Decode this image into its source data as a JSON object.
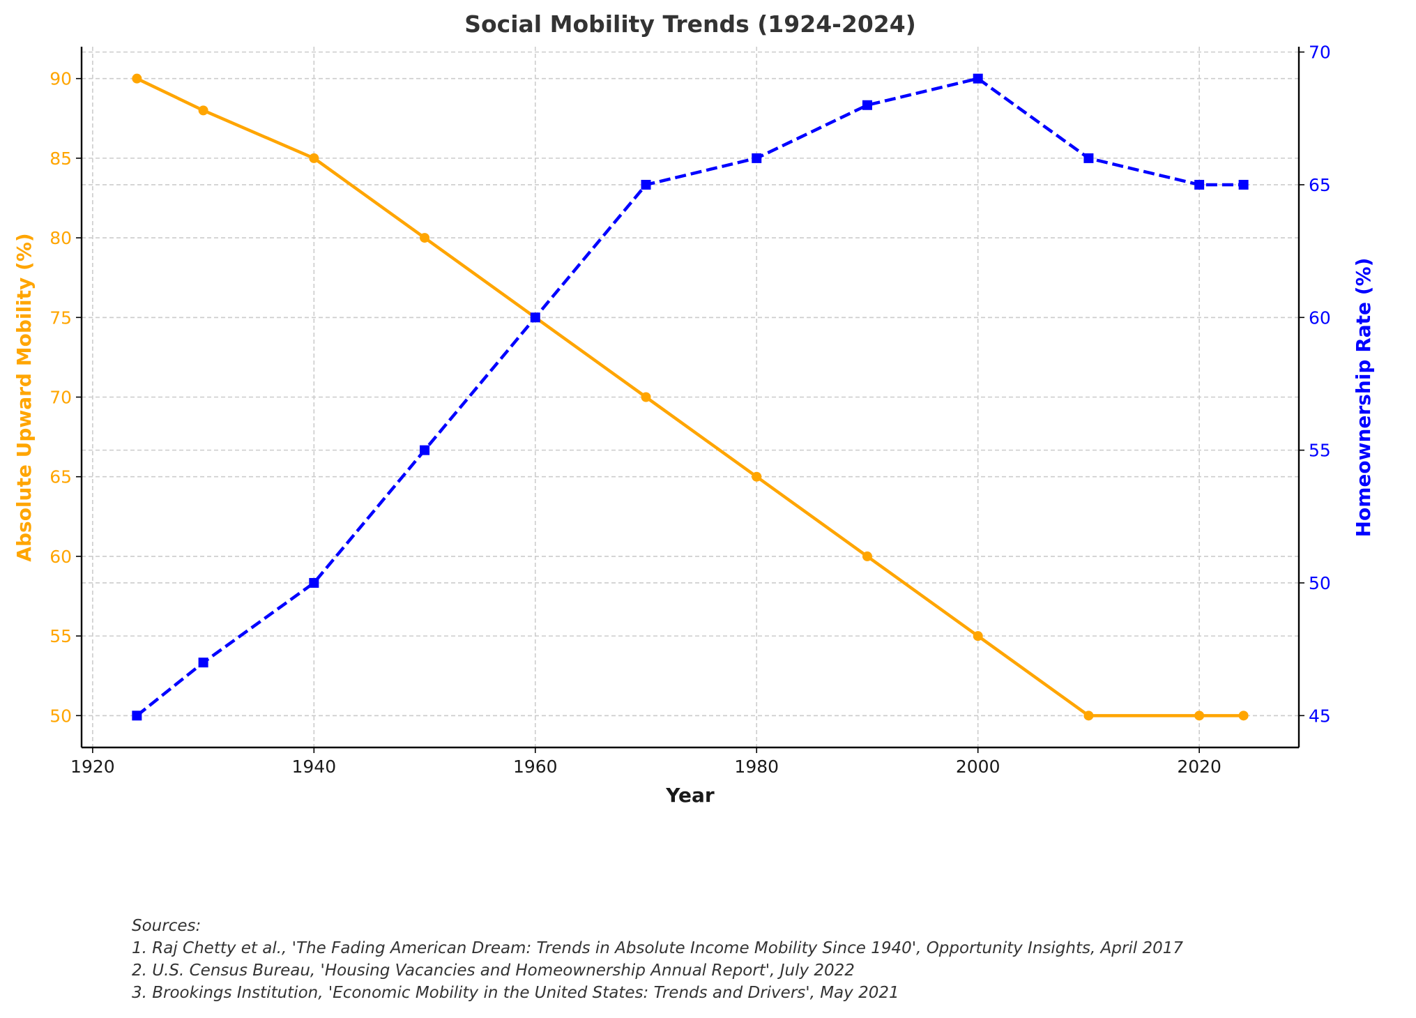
{
  "chart_data": {
    "type": "line",
    "title": "Social Mobility Trends (1924-2024)",
    "xlabel": "Year",
    "ylabel_left": "Absolute Upward Mobility (%)",
    "ylabel_right": "Homeownership Rate (%)",
    "x": [
      1924,
      1930,
      1940,
      1950,
      1960,
      1970,
      1980,
      1990,
      2000,
      2010,
      2020,
      2024
    ],
    "series": [
      {
        "axis": "left",
        "color": "#FFA500",
        "marker": "circle",
        "linestyle": "solid",
        "values": [
          90,
          88,
          85,
          80,
          75,
          70,
          65,
          60,
          55,
          50,
          50,
          50
        ]
      },
      {
        "axis": "right",
        "color": "#0000FF",
        "marker": "square",
        "linestyle": "dashed",
        "values": [
          45,
          47,
          50,
          55,
          60,
          65,
          66,
          68,
          69,
          66,
          65,
          65
        ]
      }
    ],
    "xlim": [
      1919,
      2029
    ],
    "ylim_left": [
      48,
      92
    ],
    "ylim_right": [
      43.8,
      70.2
    ],
    "xticks": [
      "1920",
      "1940",
      "1960",
      "1980",
      "2000",
      "2020"
    ],
    "yticks_left": [
      "50",
      "55",
      "60",
      "65",
      "70",
      "75",
      "80",
      "85",
      "90"
    ],
    "yticks_right": [
      "45",
      "50",
      "55",
      "60",
      "65",
      "70"
    ],
    "grid": true,
    "left_axis_color": "#FFA500",
    "right_axis_color": "#0000FF"
  },
  "sources": [
    "Sources:",
    "1. Raj Chetty et al., 'The Fading American Dream: Trends in Absolute Income Mobility Since 1940', Opportunity Insights, April 2017",
    "2. U.S. Census Bureau, 'Housing Vacancies and Homeownership Annual Report', July 2022",
    "3. Brookings Institution, 'Economic Mobility in the United States: Trends and Drivers', May 2021"
  ]
}
